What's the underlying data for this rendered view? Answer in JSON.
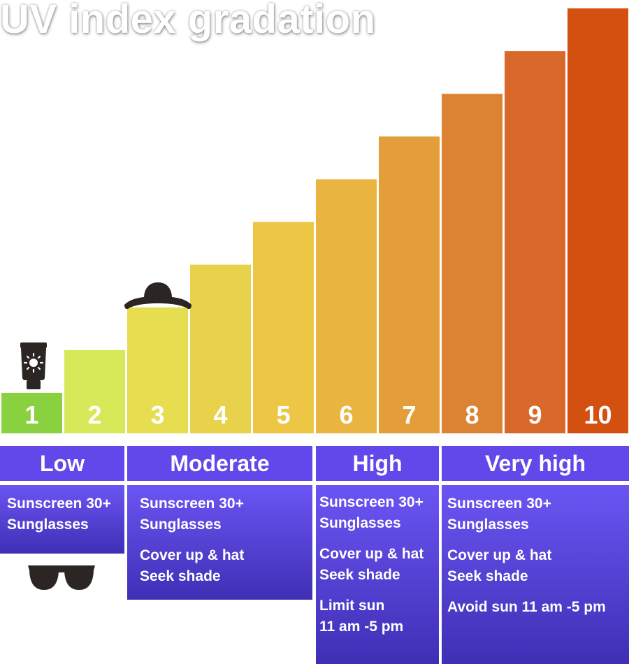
{
  "page": {
    "title": "UV index gradation"
  },
  "colors": {
    "bars": [
      "#8ad13f",
      "#d7e858",
      "#e6de50",
      "#e8d24c",
      "#edc646",
      "#e9b43f",
      "#e39e3a",
      "#dc8233",
      "#d9692a",
      "#d45010"
    ],
    "header_bg": "#6248ea",
    "advice_bg_top": "#6a55f3",
    "advice_bg_bottom": "#3f2fb5",
    "icon": "#2b2523"
  },
  "chart_data": {
    "type": "bar",
    "categories": [
      "1",
      "2",
      "3",
      "4",
      "5",
      "6",
      "7",
      "8",
      "9",
      "10"
    ],
    "values": [
      1,
      2,
      3,
      4,
      5,
      6,
      7,
      8,
      9,
      10
    ],
    "title": "UV index gradation",
    "xlabel": "",
    "ylabel": "",
    "ylim": [
      0,
      10
    ],
    "grid": false,
    "legend": "none"
  },
  "levels": [
    {
      "label": "Low",
      "range": [
        1,
        2
      ],
      "advice": [
        [
          "Sunscreen 30+",
          "Sunglasses"
        ]
      ],
      "icon": "sunglasses-icon"
    },
    {
      "label": "Moderate",
      "range": [
        3,
        5
      ],
      "advice": [
        [
          "Sunscreen 30+",
          "Sunglasses"
        ],
        [
          "Cover up & hat",
          "Seek shade"
        ]
      ]
    },
    {
      "label": "High",
      "range": [
        6,
        7
      ],
      "advice": [
        [
          "Sunscreen 30+",
          "Sunglasses"
        ],
        [
          "Cover up & hat",
          "Seek shade"
        ],
        [
          "Limit sun",
          "11 am -5 pm"
        ]
      ]
    },
    {
      "label": "Very high",
      "range": [
        8,
        10
      ],
      "advice": [
        [
          "Sunscreen 30+",
          "Sunglasses"
        ],
        [
          "Cover up & hat",
          "Seek shade"
        ],
        [
          "Avoid sun 11 am -5 pm"
        ]
      ]
    }
  ],
  "icons": {
    "bar_1": "sunscreen-icon",
    "bar_3": "hat-icon"
  }
}
